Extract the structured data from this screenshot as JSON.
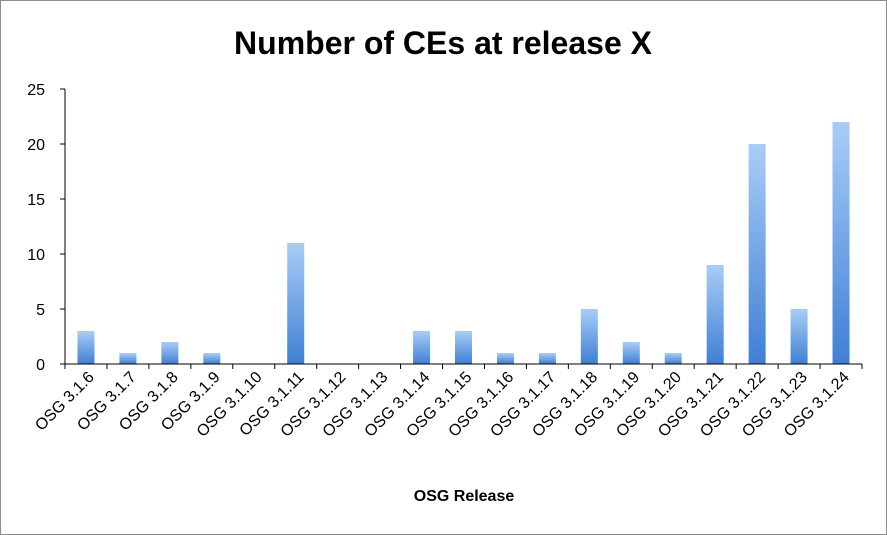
{
  "chart_data": {
    "type": "bar",
    "title": "Number of CEs at release X",
    "xlabel": "OSG Release",
    "ylabel": "",
    "ylim": [
      0,
      25
    ],
    "yticks": [
      0,
      5,
      10,
      15,
      20,
      25
    ],
    "grid": false,
    "legend": "none",
    "categories": [
      "OSG 3.1.6",
      "OSG 3.1.7",
      "OSG 3.1.8",
      "OSG 3.1.9",
      "OSG 3.1.10",
      "OSG 3.1.11",
      "OSG 3.1.12",
      "OSG 3.1.13",
      "OSG 3.1.14",
      "OSG 3.1.15",
      "OSG 3.1.16",
      "OSG 3.1.17",
      "OSG 3.1.18",
      "OSG 3.1.19",
      "OSG 3.1.20",
      "OSG 3.1.21",
      "OSG 3.1.22",
      "OSG 3.1.23",
      "OSG 3.1.24"
    ],
    "values": [
      3,
      1,
      2,
      1,
      0,
      11,
      0,
      0,
      3,
      3,
      1,
      1,
      5,
      2,
      1,
      9,
      20,
      5,
      22
    ],
    "colors": {
      "bar_top": "#a9cdf7",
      "bar_bottom": "#3f7fd4",
      "axis": "#000000"
    }
  }
}
